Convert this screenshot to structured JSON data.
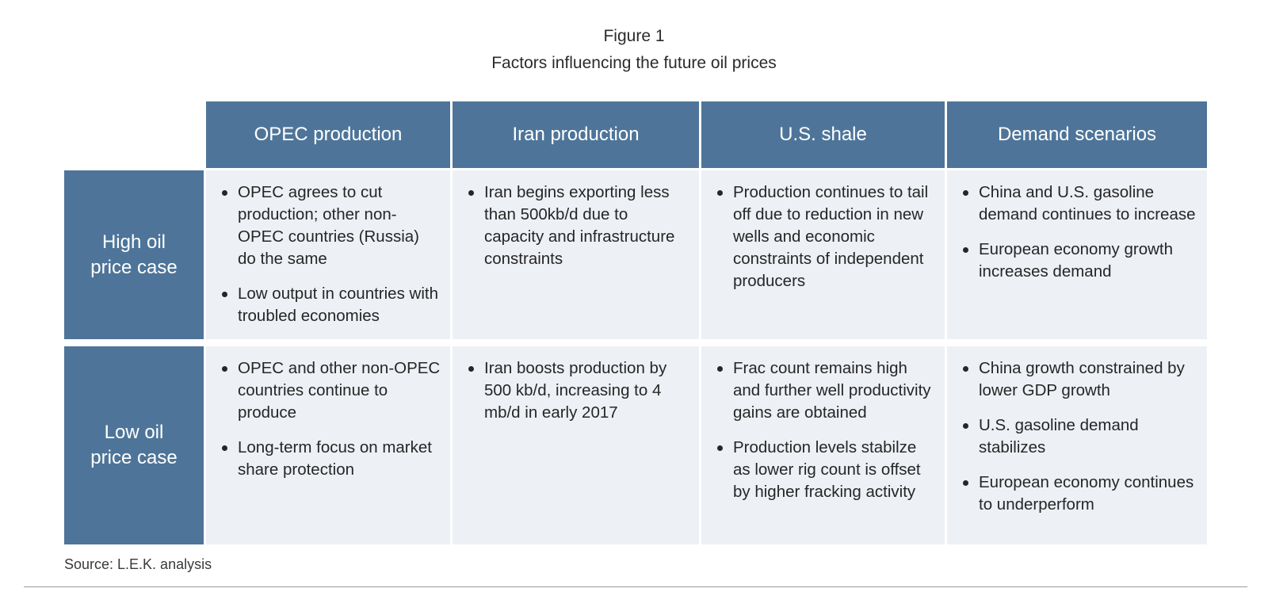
{
  "figure": {
    "number": "Figure 1",
    "title": "Factors influencing the future oil prices"
  },
  "table": {
    "columns": [
      "OPEC production",
      "Iran production",
      "U.S. shale",
      "Demand scenarios"
    ],
    "rows": [
      {
        "label": "High oil price case",
        "cells": [
          [
            "OPEC agrees to cut production; other non-OPEC countries (Russia) do the same",
            "Low output in countries with troubled economies"
          ],
          [
            "Iran begins exporting less than 500kb/d due to capacity and infrastructure constraints"
          ],
          [
            "Production continues to tail off due to reduction in new wells and economic constraints of independent producers"
          ],
          [
            "China and U.S. gasoline demand continues to increase",
            "European economy growth increases demand"
          ]
        ]
      },
      {
        "label": "Low oil price case",
        "cells": [
          [
            "OPEC and other non-OPEC countries continue to produce",
            "Long-term focus on market share protection"
          ],
          [
            "Iran boosts production by 500 kb/d, increasing to 4 mb/d in early 2017"
          ],
          [
            "Frac count remains high and further well productivity gains are obtained",
            "Production levels stabilze as lower rig count is offset by higher fracking activity"
          ],
          [
            "China growth constrained by lower GDP growth",
            "U.S. gasoline demand stabilizes",
            "European economy continues to underperform"
          ]
        ]
      }
    ]
  },
  "source": "Source: L.E.K. analysis",
  "colors": {
    "header_fill": "#4e7599",
    "cell_fill": "#edf0f5"
  }
}
